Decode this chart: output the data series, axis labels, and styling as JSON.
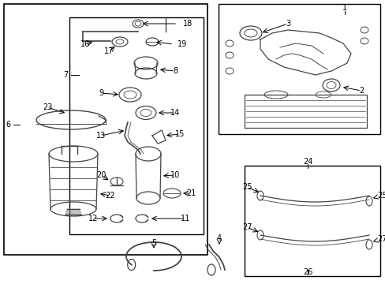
{
  "bg_color": "#ffffff",
  "line_color": "#000000",
  "part_color": "#444444",
  "fig_width": 4.89,
  "fig_height": 3.6,
  "dpi": 100,
  "font_size": 7.0
}
